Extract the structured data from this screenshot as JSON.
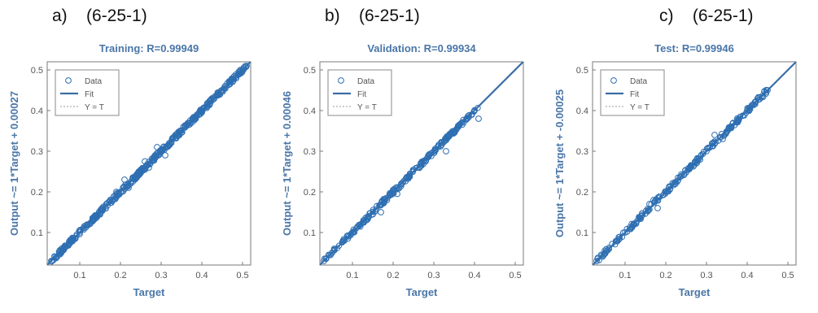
{
  "colors": {
    "accent": "#3a6ea5",
    "points": "#2e6fb2",
    "text": "#4a76a8",
    "panel_label": "#111111"
  },
  "chart_data": [
    {
      "type": "scatter",
      "panel_label": "a)    (6-25-1)",
      "title": "Training: R=0.99949",
      "xlabel": "Target",
      "ylabel": "Output ~= 1*Target + 0.00027",
      "xlim": [
        0.02,
        0.52
      ],
      "ylim": [
        0.02,
        0.52
      ],
      "xticks": [
        0.1,
        0.2,
        0.3,
        0.4,
        0.5
      ],
      "yticks": [
        0.1,
        0.2,
        0.3,
        0.4,
        0.5
      ],
      "grid": false,
      "legend_position": "top-left",
      "legend": [
        "Data",
        "Fit",
        "Y = T"
      ],
      "fit": {
        "slope": 1,
        "intercept": 0.00027
      },
      "r": 0.99949,
      "samples": [
        [
          0.03,
          0.03
        ],
        [
          0.05,
          0.05
        ],
        [
          0.08,
          0.082
        ],
        [
          0.1,
          0.1
        ],
        [
          0.12,
          0.118
        ],
        [
          0.15,
          0.15
        ],
        [
          0.18,
          0.178
        ],
        [
          0.19,
          0.2
        ],
        [
          0.2,
          0.2
        ],
        [
          0.21,
          0.23
        ],
        [
          0.22,
          0.21
        ],
        [
          0.23,
          0.235
        ],
        [
          0.24,
          0.24
        ],
        [
          0.25,
          0.25
        ],
        [
          0.26,
          0.275
        ],
        [
          0.27,
          0.26
        ],
        [
          0.28,
          0.28
        ],
        [
          0.29,
          0.31
        ],
        [
          0.3,
          0.3
        ],
        [
          0.31,
          0.29
        ],
        [
          0.32,
          0.32
        ],
        [
          0.34,
          0.338
        ],
        [
          0.36,
          0.36
        ],
        [
          0.38,
          0.38
        ],
        [
          0.4,
          0.4
        ],
        [
          0.42,
          0.418
        ],
        [
          0.44,
          0.44
        ],
        [
          0.46,
          0.46
        ],
        [
          0.49,
          0.49
        ],
        [
          0.51,
          0.51
        ]
      ]
    },
    {
      "type": "scatter",
      "panel_label": "b)    (6-25-1)",
      "title": "Validation: R=0.99934",
      "xlabel": "Target",
      "ylabel": "Output ~= 1*Target + 0.00046",
      "xlim": [
        0.02,
        0.52
      ],
      "ylim": [
        0.02,
        0.52
      ],
      "xticks": [
        0.1,
        0.2,
        0.3,
        0.4,
        0.5
      ],
      "yticks": [
        0.1,
        0.2,
        0.3,
        0.4,
        0.5
      ],
      "grid": false,
      "legend_position": "top-left",
      "legend": [
        "Data",
        "Fit",
        "Y = T"
      ],
      "fit": {
        "slope": 1,
        "intercept": 0.00046
      },
      "r": 0.99934,
      "samples": [
        [
          0.03,
          0.03
        ],
        [
          0.05,
          0.05
        ],
        [
          0.08,
          0.08
        ],
        [
          0.1,
          0.1
        ],
        [
          0.12,
          0.12
        ],
        [
          0.14,
          0.14
        ],
        [
          0.16,
          0.165
        ],
        [
          0.17,
          0.15
        ],
        [
          0.18,
          0.18
        ],
        [
          0.2,
          0.2
        ],
        [
          0.21,
          0.195
        ],
        [
          0.22,
          0.22
        ],
        [
          0.24,
          0.24
        ],
        [
          0.26,
          0.26
        ],
        [
          0.28,
          0.275
        ],
        [
          0.3,
          0.3
        ],
        [
          0.32,
          0.32
        ],
        [
          0.33,
          0.3
        ],
        [
          0.34,
          0.34
        ],
        [
          0.36,
          0.36
        ],
        [
          0.38,
          0.38
        ],
        [
          0.4,
          0.4
        ],
        [
          0.41,
          0.38
        ]
      ]
    },
    {
      "type": "scatter",
      "panel_label": "c)    (6-25-1)",
      "title": "Test: R=0.99946",
      "xlabel": "Target",
      "ylabel": "Output ~= 1*Target + -0.00025",
      "xlim": [
        0.02,
        0.52
      ],
      "ylim": [
        0.02,
        0.52
      ],
      "xticks": [
        0.1,
        0.2,
        0.3,
        0.4,
        0.5
      ],
      "yticks": [
        0.1,
        0.2,
        0.3,
        0.4,
        0.5
      ],
      "grid": false,
      "legend_position": "top-left",
      "legend": [
        "Data",
        "Fit",
        "Y = T"
      ],
      "fit": {
        "slope": 1,
        "intercept": -0.00025
      },
      "r": 0.99946,
      "samples": [
        [
          0.03,
          0.03
        ],
        [
          0.05,
          0.05
        ],
        [
          0.08,
          0.08
        ],
        [
          0.1,
          0.1
        ],
        [
          0.12,
          0.12
        ],
        [
          0.14,
          0.14
        ],
        [
          0.16,
          0.17
        ],
        [
          0.17,
          0.18
        ],
        [
          0.18,
          0.16
        ],
        [
          0.2,
          0.2
        ],
        [
          0.22,
          0.22
        ],
        [
          0.24,
          0.24
        ],
        [
          0.26,
          0.26
        ],
        [
          0.28,
          0.28
        ],
        [
          0.3,
          0.3
        ],
        [
          0.32,
          0.34
        ],
        [
          0.34,
          0.33
        ],
        [
          0.36,
          0.36
        ],
        [
          0.38,
          0.38
        ],
        [
          0.4,
          0.4
        ],
        [
          0.42,
          0.42
        ],
        [
          0.45,
          0.45
        ]
      ]
    }
  ]
}
